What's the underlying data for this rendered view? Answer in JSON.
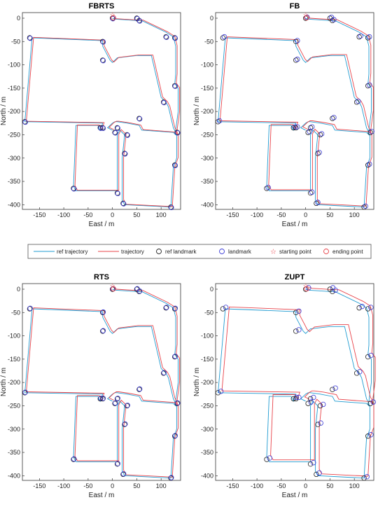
{
  "legend": {
    "ref_trajectory": "ref trajectory",
    "trajectory": "trajectory",
    "ref_landmark": "ref landmark",
    "landmark": "landmark",
    "starting_point": "starting point",
    "ending_point": "ending point"
  },
  "colors": {
    "ref": "#1f9bd1",
    "est": "#e8434a",
    "ref_landmark": "#222222",
    "landmark": "#3b3bd6",
    "start": "#e8434a",
    "end": "#e8434a"
  },
  "chart_data": [
    {
      "type": "line",
      "title": "FBRTS",
      "xlabel": "East / m",
      "ylabel": "North / m",
      "xlim": [
        -185,
        140
      ],
      "ylim": [
        -410,
        12
      ],
      "xticks": [
        -150,
        -100,
        -50,
        0,
        50,
        100
      ],
      "yticks": [
        0,
        -50,
        -100,
        -150,
        -200,
        -250,
        -300,
        -350,
        -400
      ],
      "est_offset": [
        3,
        1
      ],
      "landmark_offset": [
        1,
        -1
      ]
    },
    {
      "type": "line",
      "title": "FB",
      "xlabel": "East / m",
      "ylabel": "North / m",
      "xlim": [
        -185,
        140
      ],
      "ylim": [
        -410,
        12
      ],
      "xticks": [
        -150,
        -100,
        -50,
        0,
        50,
        100
      ],
      "yticks": [
        0,
        -50,
        -100,
        -150,
        -200,
        -250,
        -300,
        -350,
        -400
      ],
      "est_offset": [
        4,
        2
      ],
      "landmark_offset": [
        3,
        2
      ]
    },
    {
      "type": "line",
      "title": "RTS",
      "xlabel": "East / m",
      "ylabel": "North / m",
      "xlim": [
        -185,
        140
      ],
      "ylim": [
        -410,
        12
      ],
      "xticks": [
        -150,
        -100,
        -50,
        0,
        50,
        100
      ],
      "yticks": [
        0,
        -50,
        -100,
        -150,
        -200,
        -250,
        -300,
        -350,
        -400
      ],
      "est_offset": [
        3,
        2
      ],
      "landmark_offset": [
        1,
        1
      ]
    },
    {
      "type": "line",
      "title": "ZUPT",
      "xlabel": "East / m",
      "ylabel": "North / m",
      "xlim": [
        -185,
        140
      ],
      "ylim": [
        -410,
        12
      ],
      "xticks": [
        -150,
        -100,
        -50,
        0,
        50,
        100
      ],
      "yticks": [
        0,
        -50,
        -100,
        -150,
        -200,
        -250,
        -300,
        -350,
        -400
      ],
      "est_offset": [
        8,
        4
      ],
      "landmark_offset": [
        6,
        3
      ]
    }
  ],
  "ref_trajectory": {
    "x": [
      0,
      5,
      50,
      60,
      110,
      125,
      130,
      130,
      128,
      135,
      135,
      130,
      128,
      132,
      132,
      125,
      120,
      25,
      20,
      20,
      25,
      15,
      10,
      10,
      -75,
      -80,
      -75,
      -30,
      -25,
      -20,
      -180,
      -165,
      -20,
      -20,
      -15,
      -10,
      -5,
      0,
      5,
      10,
      50,
      80,
      100,
      110,
      115,
      125,
      130,
      130,
      125,
      60,
      55,
      30,
      10,
      5,
      0,
      -5,
      -10,
      0
    ],
    "y": [
      0,
      -2,
      -5,
      -5,
      -30,
      -40,
      -60,
      -120,
      -140,
      -150,
      -200,
      -240,
      -245,
      -250,
      -300,
      -320,
      -405,
      -400,
      -390,
      -300,
      -250,
      -240,
      -250,
      -370,
      -370,
      -360,
      -230,
      -230,
      -240,
      -225,
      -222,
      -42,
      -48,
      -60,
      -70,
      -80,
      -90,
      -95,
      -90,
      -85,
      -80,
      -80,
      -170,
      -180,
      -190,
      -235,
      -245,
      -250,
      -245,
      -240,
      -230,
      -225,
      -222,
      -222,
      -225,
      -230,
      -235,
      -240
    ]
  },
  "ref_landmarks": {
    "x": [
      0,
      50,
      55,
      110,
      128,
      128,
      105,
      55,
      -20,
      -20,
      -25,
      -80,
      -180,
      -170,
      10,
      30,
      25,
      133,
      128,
      120,
      22,
      10,
      -20,
      5
    ],
    "y": [
      0,
      0,
      -5,
      -40,
      -42,
      -145,
      -180,
      -215,
      -50,
      -90,
      -235,
      -365,
      -222,
      -42,
      -235,
      -250,
      -290,
      -245,
      -315,
      -405,
      -397,
      -375,
      -235,
      -245
    ]
  },
  "starting_point": {
    "x": 0,
    "y": 8
  },
  "ending_point": {
    "x": 2,
    "y": 1
  }
}
